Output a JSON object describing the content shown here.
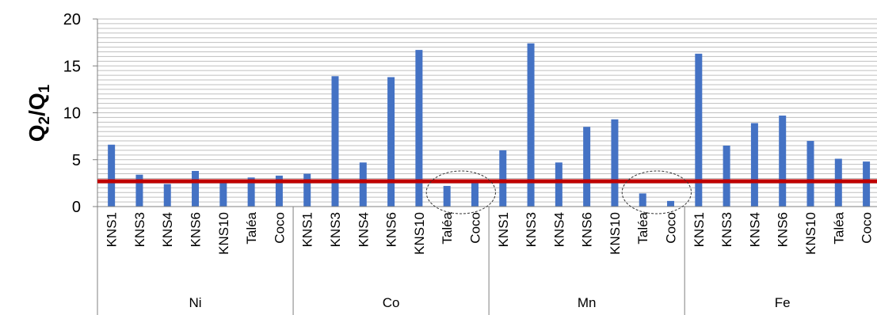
{
  "chart_data": {
    "type": "bar",
    "ylabel": "Q2/Q1",
    "ylabel_main": "Q",
    "ylabel_sub1": "2",
    "ylabel_slash": "/Q",
    "ylabel_sub2": "1",
    "ylim": [
      0,
      20
    ],
    "yticks": [
      "0",
      "5",
      "10",
      "15",
      "20"
    ],
    "grid": true,
    "groups": [
      {
        "name": "Ni",
        "categories": [
          "KNS1",
          "KNS3",
          "KNS4",
          "KNS6",
          "KNS10",
          "Taléa",
          "Coco"
        ],
        "values": [
          6.6,
          3.4,
          2.4,
          3.8,
          2.7,
          3.1,
          3.3
        ]
      },
      {
        "name": "Co",
        "categories": [
          "KNS1",
          "KNS3",
          "KNS4",
          "KNS6",
          "KNS10",
          "Taléa",
          "Coco"
        ],
        "values": [
          3.5,
          13.9,
          4.7,
          13.8,
          16.7,
          2.2,
          2.5
        ]
      },
      {
        "name": "Mn",
        "categories": [
          "KNS1",
          "KNS3",
          "KNS4",
          "KNS6",
          "KNS10",
          "Taléa",
          "Coco"
        ],
        "values": [
          6.0,
          17.4,
          4.7,
          8.5,
          9.3,
          1.4,
          0.6
        ]
      },
      {
        "name": "Fe",
        "categories": [
          "KNS1",
          "KNS3",
          "KNS4",
          "KNS6",
          "KNS10",
          "Taléa",
          "Coco"
        ],
        "values": [
          16.3,
          6.5,
          8.9,
          9.7,
          7.0,
          5.1,
          4.8
        ]
      }
    ],
    "reference_line": {
      "value": 2.7,
      "color": "#c00000"
    },
    "highlight_circles": [
      {
        "group": "Co",
        "categories": [
          "Taléa",
          "Coco"
        ]
      },
      {
        "group": "Mn",
        "categories": [
          "Taléa",
          "Coco"
        ]
      }
    ],
    "colors": {
      "bar": "#4472c4",
      "grid": "#bfbfbf",
      "axis": "#808080",
      "reference": "#c00000"
    }
  }
}
